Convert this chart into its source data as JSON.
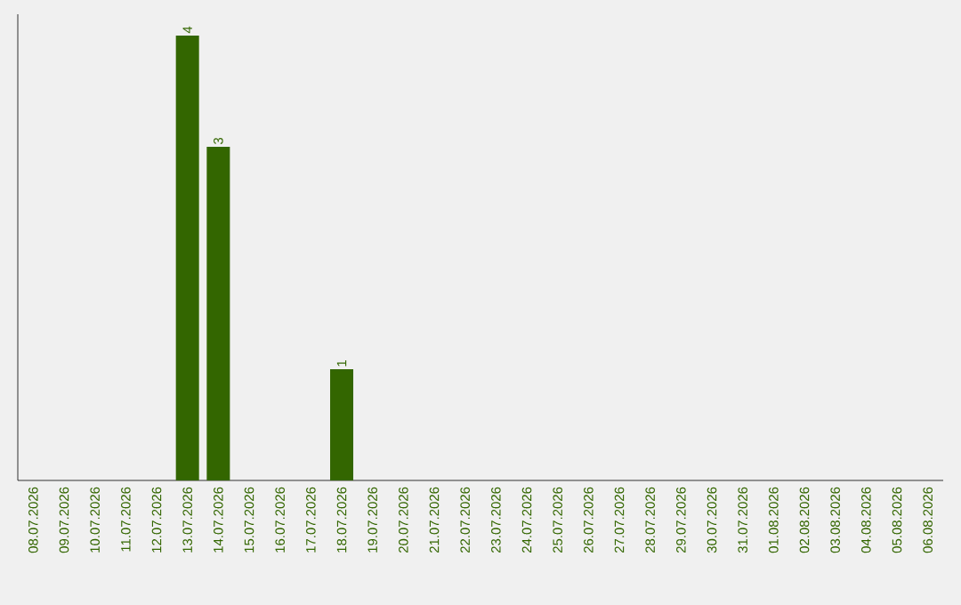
{
  "chart_data": {
    "type": "bar",
    "categories": [
      "08.07.2026",
      "09.07.2026",
      "10.07.2026",
      "11.07.2026",
      "12.07.2026",
      "13.07.2026",
      "14.07.2026",
      "15.07.2026",
      "16.07.2026",
      "17.07.2026",
      "18.07.2026",
      "19.07.2026",
      "20.07.2026",
      "21.07.2026",
      "22.07.2026",
      "23.07.2026",
      "24.07.2026",
      "25.07.2026",
      "26.07.2026",
      "27.07.2026",
      "28.07.2026",
      "29.07.2026",
      "30.07.2026",
      "31.07.2026",
      "01.08.2026",
      "02.08.2026",
      "03.08.2026",
      "04.08.2026",
      "05.08.2026",
      "06.08.2026"
    ],
    "values": [
      0,
      0,
      0,
      0,
      0,
      4,
      3,
      0,
      0,
      0,
      1,
      0,
      0,
      0,
      0,
      0,
      0,
      0,
      0,
      0,
      0,
      0,
      0,
      0,
      0,
      0,
      0,
      0,
      0,
      0
    ],
    "value_labels": [
      null,
      null,
      null,
      null,
      null,
      "4",
      "3",
      null,
      null,
      null,
      "1",
      null,
      null,
      null,
      null,
      null,
      null,
      null,
      null,
      null,
      null,
      null,
      null,
      null,
      null,
      null,
      null,
      null,
      null,
      null
    ],
    "color": "#336600"
  }
}
